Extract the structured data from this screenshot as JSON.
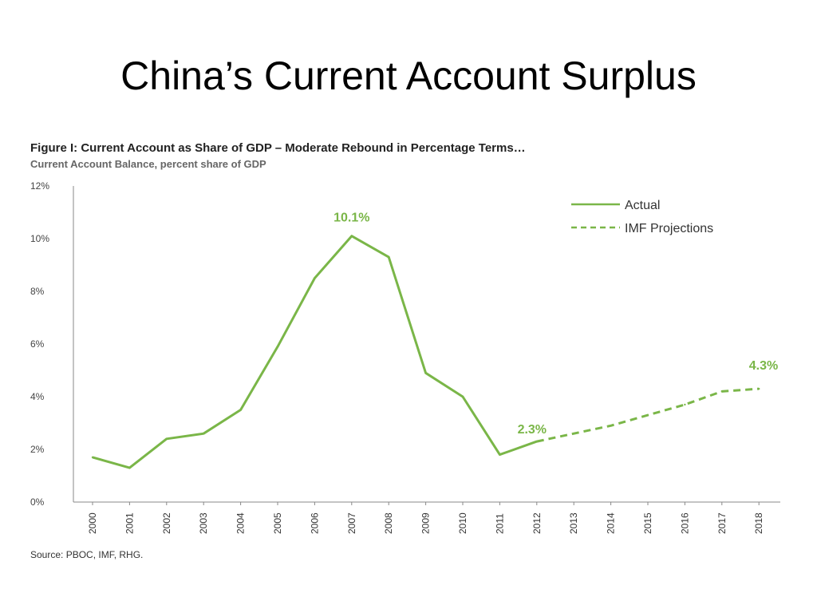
{
  "slide": {
    "title": "China’s Current Account Surplus"
  },
  "figure": {
    "title": "Figure I: Current Account as Share of GDP – Moderate Rebound in Percentage Terms…",
    "subtitle": "Current Account Balance, percent share of GDP",
    "source": "Source: PBOC, IMF, RHG."
  },
  "colors": {
    "line": "#7ab648",
    "axis": "#888888"
  },
  "chart_data": {
    "type": "line",
    "x": [
      "2000",
      "2001",
      "2002",
      "2003",
      "2004",
      "2005",
      "2006",
      "2007",
      "2008",
      "2009",
      "2010",
      "2011",
      "2012",
      "2013",
      "2014",
      "2015",
      "2016",
      "2017",
      "2018"
    ],
    "series": [
      {
        "name": "Actual",
        "style": "solid",
        "x": [
          "2000",
          "2001",
          "2002",
          "2003",
          "2004",
          "2005",
          "2006",
          "2007",
          "2008",
          "2009",
          "2010",
          "2011",
          "2012"
        ],
        "values": [
          1.7,
          1.3,
          2.4,
          2.6,
          3.5,
          5.9,
          8.5,
          10.1,
          9.3,
          4.9,
          4.0,
          1.8,
          2.3
        ]
      },
      {
        "name": "IMF Projections",
        "style": "dashed",
        "x": [
          "2012",
          "2013",
          "2014",
          "2015",
          "2016",
          "2017",
          "2018"
        ],
        "values": [
          2.3,
          2.6,
          2.9,
          3.3,
          3.7,
          4.2,
          4.3
        ]
      }
    ],
    "ylim": [
      0,
      12
    ],
    "yticks": [
      0,
      2,
      4,
      6,
      8,
      10,
      12
    ],
    "ytick_labels": [
      "0%",
      "2%",
      "4%",
      "6%",
      "8%",
      "10%",
      "12%"
    ],
    "annotations": [
      {
        "x": "2007",
        "y": 10.1,
        "text": "10.1%"
      },
      {
        "x": "2012",
        "y": 2.3,
        "text": "2.3%"
      },
      {
        "x": "2018",
        "y": 4.3,
        "text": "4.3%"
      }
    ],
    "legend": "top-right",
    "grid": false
  }
}
